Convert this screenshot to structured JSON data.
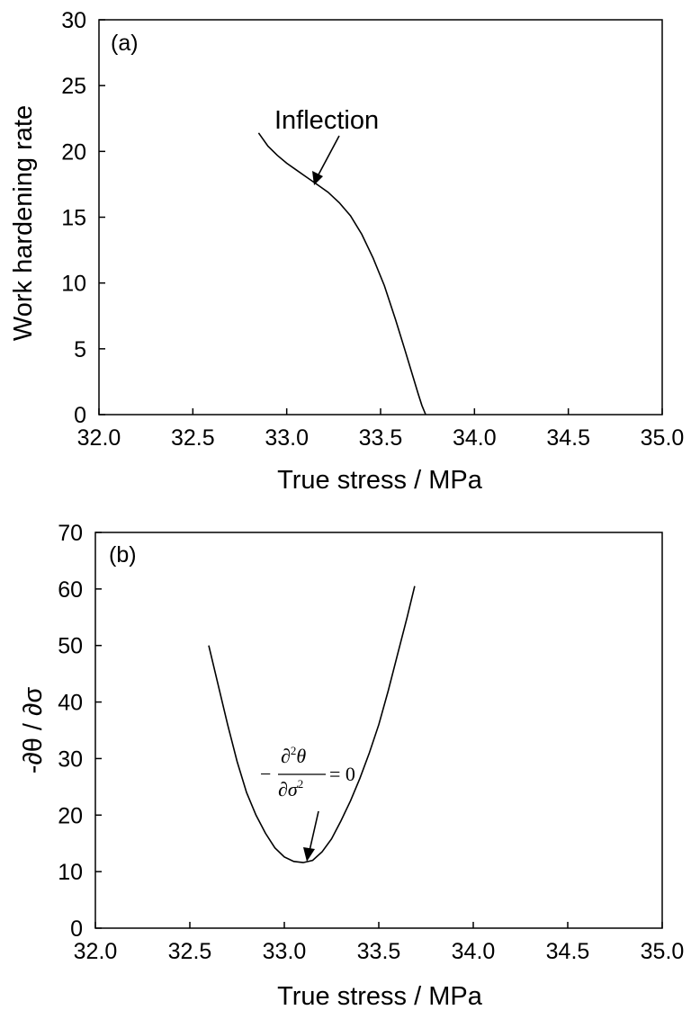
{
  "chart_data": [
    {
      "type": "line",
      "panel_label": "(a)",
      "xlabel": "True stress / MPa",
      "ylabel": "Work hardening rate",
      "xlim": [
        32.0,
        35.0
      ],
      "ylim": [
        0,
        30
      ],
      "xticks": [
        "32.0",
        "32.5",
        "33.0",
        "33.5",
        "34.0",
        "34.5",
        "35.0"
      ],
      "yticks": [
        "0",
        "5",
        "10",
        "15",
        "20",
        "25",
        "30"
      ],
      "grid": false,
      "annotation": {
        "text": "Inflection",
        "point": [
          33.16,
          17.5
        ]
      },
      "series": [
        {
          "x": [
            32.85,
            32.9,
            32.95,
            33.0,
            33.05,
            33.1,
            33.16,
            33.22,
            33.28,
            33.34,
            33.4,
            33.46,
            33.52,
            33.58,
            33.63,
            33.67,
            33.7,
            33.72,
            33.74
          ],
          "values": [
            21.4,
            20.4,
            19.7,
            19.1,
            18.6,
            18.1,
            17.5,
            16.9,
            16.1,
            15.1,
            13.7,
            11.9,
            9.8,
            7.2,
            4.9,
            3.0,
            1.6,
            0.7,
            0.0
          ]
        }
      ]
    },
    {
      "type": "line",
      "panel_label": "(b)",
      "xlabel": "True stress / MPa",
      "ylabel": "-∂θ / ∂σ",
      "xlim": [
        32.0,
        35.0
      ],
      "ylim": [
        0,
        70
      ],
      "xticks": [
        "32.0",
        "32.5",
        "33.0",
        "33.5",
        "34.0",
        "34.5",
        "35.0"
      ],
      "yticks": [
        "0",
        "10",
        "20",
        "30",
        "40",
        "50",
        "60",
        "70"
      ],
      "grid": false,
      "annotation": {
        "minus": "−",
        "numerator_d": "∂",
        "numerator_sup": "2",
        "numerator_var": "θ",
        "denominator_d": "∂",
        "denominator_var": "σ",
        "denominator_sup": "2",
        "rhs": "= 0",
        "point": [
          33.11,
          11.5
        ]
      },
      "series": [
        {
          "x": [
            32.6,
            32.65,
            32.7,
            32.75,
            32.8,
            32.85,
            32.9,
            32.95,
            33.0,
            33.05,
            33.1,
            33.15,
            33.2,
            33.25,
            33.3,
            33.35,
            33.4,
            33.45,
            33.5,
            33.55,
            33.6,
            33.65,
            33.69
          ],
          "values": [
            50.0,
            43.0,
            36.0,
            29.5,
            24.0,
            20.0,
            16.8,
            14.2,
            12.6,
            11.8,
            11.6,
            12.0,
            13.5,
            15.8,
            19.0,
            22.5,
            26.5,
            31.0,
            36.0,
            42.0,
            48.5,
            55.0,
            60.5
          ]
        }
      ]
    }
  ]
}
